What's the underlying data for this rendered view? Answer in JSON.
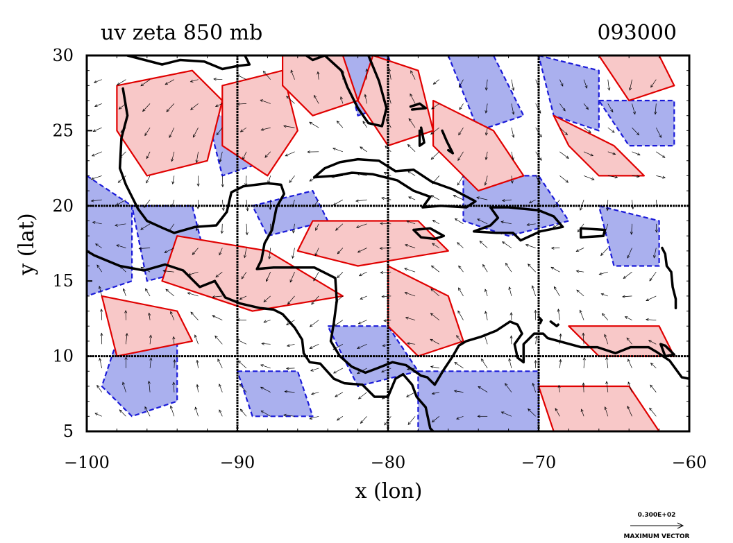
{
  "chart_data": {
    "type": "vector-contour",
    "title": "uv zeta 850 mb",
    "time_label": "093000",
    "xlabel": "x (lon)",
    "ylabel": "y (lat)",
    "xlim": [
      -100,
      -60
    ],
    "ylim": [
      5,
      30
    ],
    "xticks": [
      -100,
      -90,
      -80,
      -70,
      -60
    ],
    "xtick_labels": [
      "−100",
      "−90",
      "−80",
      "−70",
      "−60"
    ],
    "yticks": [
      5,
      10,
      15,
      20,
      25,
      30
    ],
    "ytick_labels": [
      "5",
      "10",
      "15",
      "20",
      "25",
      "30"
    ],
    "grid_lon": [
      -90,
      -80,
      -70
    ],
    "grid_lat": [
      10,
      20
    ],
    "vector_key_value": "0.300E+02",
    "vector_key_label": "MAXIMUM VECTOR",
    "colors": {
      "positive_contour": "#e00000",
      "positive_fill": "#f8c8c8",
      "negative_contour": "#1a1ad8",
      "negative_fill": "#aab0ee",
      "coastline": "#000000"
    },
    "positive_regions": [
      [
        [
          -98,
          28
        ],
        [
          -93,
          29
        ],
        [
          -91,
          27
        ],
        [
          -92,
          23
        ],
        [
          -96,
          22
        ],
        [
          -98,
          25
        ]
      ],
      [
        [
          -91,
          28
        ],
        [
          -87,
          29
        ],
        [
          -86,
          25
        ],
        [
          -88,
          22
        ],
        [
          -91,
          24
        ]
      ],
      [
        [
          -87,
          30
        ],
        [
          -83,
          30
        ],
        [
          -82,
          27
        ],
        [
          -85,
          26
        ],
        [
          -87,
          28
        ]
      ],
      [
        [
          -81,
          30
        ],
        [
          -78,
          29
        ],
        [
          -77,
          25
        ],
        [
          -80,
          24
        ],
        [
          -82,
          27
        ]
      ],
      [
        [
          -77,
          27
        ],
        [
          -73,
          25
        ],
        [
          -71,
          22
        ],
        [
          -74,
          21
        ],
        [
          -77,
          24
        ]
      ],
      [
        [
          -85,
          19
        ],
        [
          -78,
          19
        ],
        [
          -76,
          17
        ],
        [
          -82,
          16
        ],
        [
          -86,
          17
        ]
      ],
      [
        [
          -94,
          18
        ],
        [
          -88,
          17
        ],
        [
          -83,
          14
        ],
        [
          -89,
          13
        ],
        [
          -95,
          15
        ]
      ],
      [
        [
          -99,
          14
        ],
        [
          -94,
          13
        ],
        [
          -93,
          11
        ],
        [
          -98,
          10
        ]
      ],
      [
        [
          -80,
          16
        ],
        [
          -76,
          14
        ],
        [
          -75,
          11
        ],
        [
          -78,
          10
        ],
        [
          -80,
          12
        ]
      ],
      [
        [
          -68,
          12
        ],
        [
          -62,
          12
        ],
        [
          -61,
          10
        ],
        [
          -66,
          10
        ]
      ],
      [
        [
          -70,
          8
        ],
        [
          -64,
          8
        ],
        [
          -62,
          5
        ],
        [
          -69,
          5
        ]
      ],
      [
        [
          -66,
          30
        ],
        [
          -62,
          30
        ],
        [
          -61,
          28
        ],
        [
          -64,
          27
        ]
      ],
      [
        [
          -69,
          26
        ],
        [
          -65,
          24
        ],
        [
          -63,
          22
        ],
        [
          -66,
          22
        ],
        [
          -68,
          24
        ]
      ]
    ],
    "negative_regions": [
      [
        [
          -100,
          22
        ],
        [
          -97,
          20
        ],
        [
          -97,
          15
        ],
        [
          -100,
          14
        ]
      ],
      [
        [
          -97,
          20
        ],
        [
          -93,
          20
        ],
        [
          -92,
          16
        ],
        [
          -96,
          15
        ]
      ],
      [
        [
          -92,
          26
        ],
        [
          -89,
          26
        ],
        [
          -88,
          23
        ],
        [
          -91,
          22
        ]
      ],
      [
        [
          -89,
          20
        ],
        [
          -85,
          21
        ],
        [
          -84,
          19
        ],
        [
          -88,
          18
        ]
      ],
      [
        [
          -83,
          30
        ],
        [
          -80,
          30
        ],
        [
          -79,
          27
        ],
        [
          -82,
          26
        ]
      ],
      [
        [
          -76,
          30
        ],
        [
          -73,
          30
        ],
        [
          -71,
          26
        ],
        [
          -74,
          25
        ]
      ],
      [
        [
          -70,
          30
        ],
        [
          -66,
          29
        ],
        [
          -66,
          25
        ],
        [
          -69,
          26
        ]
      ],
      [
        [
          -66,
          27
        ],
        [
          -61,
          27
        ],
        [
          -61,
          24
        ],
        [
          -64,
          24
        ]
      ],
      [
        [
          -75,
          22
        ],
        [
          -70,
          22
        ],
        [
          -68,
          19
        ],
        [
          -72,
          18
        ],
        [
          -75,
          19
        ]
      ],
      [
        [
          -66,
          20
        ],
        [
          -62,
          19
        ],
        [
          -62,
          16
        ],
        [
          -65,
          16
        ]
      ],
      [
        [
          -84,
          12
        ],
        [
          -80,
          12
        ],
        [
          -78,
          9
        ],
        [
          -82,
          8
        ]
      ],
      [
        [
          -90,
          9
        ],
        [
          -86,
          9
        ],
        [
          -85,
          6
        ],
        [
          -89,
          6
        ]
      ],
      [
        [
          -78,
          9
        ],
        [
          -70,
          9
        ],
        [
          -70,
          5
        ],
        [
          -78,
          5
        ]
      ],
      [
        [
          -98,
          11
        ],
        [
          -94,
          11
        ],
        [
          -94,
          7
        ],
        [
          -97,
          6
        ],
        [
          -99,
          8
        ]
      ]
    ],
    "coastlines": [
      [
        [
          -97.6,
          27.8
        ],
        [
          -97.3,
          26.0
        ],
        [
          -97.7,
          24.5
        ],
        [
          -97.8,
          22.5
        ],
        [
          -97.4,
          21.4
        ],
        [
          -96.6,
          19.8
        ],
        [
          -96.0,
          19.0
        ],
        [
          -94.9,
          18.5
        ],
        [
          -94.2,
          18.2
        ],
        [
          -92.8,
          18.6
        ],
        [
          -91.4,
          18.7
        ],
        [
          -90.7,
          19.6
        ],
        [
          -90.4,
          20.9
        ],
        [
          -89.6,
          21.3
        ],
        [
          -88.0,
          21.5
        ],
        [
          -87.1,
          21.4
        ],
        [
          -86.9,
          20.8
        ],
        [
          -87.4,
          19.9
        ],
        [
          -87.7,
          18.4
        ],
        [
          -88.2,
          17.5
        ],
        [
          -88.4,
          16.4
        ],
        [
          -88.7,
          15.8
        ],
        [
          -87.6,
          15.9
        ],
        [
          -86.4,
          15.9
        ],
        [
          -84.9,
          15.9
        ],
        [
          -83.5,
          15.2
        ],
        [
          -83.4,
          13.7
        ],
        [
          -83.6,
          12.2
        ],
        [
          -83.8,
          11.0
        ],
        [
          -83.2,
          10.0
        ],
        [
          -82.4,
          9.3
        ],
        [
          -81.5,
          8.9
        ],
        [
          -80.7,
          9.2
        ],
        [
          -79.7,
          9.6
        ],
        [
          -78.8,
          9.4
        ],
        [
          -77.8,
          8.7
        ],
        [
          -77.4,
          8.6
        ],
        [
          -76.9,
          8.1
        ],
        [
          -76.3,
          9.1
        ],
        [
          -75.7,
          10.0
        ],
        [
          -75.3,
          10.7
        ],
        [
          -74.8,
          11.0
        ],
        [
          -73.8,
          11.3
        ],
        [
          -72.8,
          11.7
        ],
        [
          -71.9,
          12.3
        ],
        [
          -71.4,
          12.1
        ],
        [
          -71.1,
          11.5
        ],
        [
          -71.6,
          10.8
        ],
        [
          -71.4,
          9.9
        ],
        [
          -71.0,
          9.6
        ],
        [
          -71.0,
          10.8
        ],
        [
          -70.3,
          11.5
        ],
        [
          -69.7,
          11.5
        ],
        [
          -69.4,
          11.2
        ],
        [
          -68.3,
          10.9
        ],
        [
          -67.2,
          10.6
        ],
        [
          -66.1,
          10.6
        ],
        [
          -64.9,
          10.2
        ],
        [
          -63.9,
          10.6
        ],
        [
          -62.7,
          10.6
        ],
        [
          -62.2,
          10.3
        ],
        [
          -61.3,
          9.7
        ],
        [
          -60.5,
          8.6
        ],
        [
          -60.0,
          8.5
        ]
      ],
      [
        [
          -91.5,
          15.0
        ],
        [
          -92.5,
          14.6
        ],
        [
          -93.6,
          15.7
        ],
        [
          -94.8,
          16.1
        ],
        [
          -96.2,
          15.7
        ],
        [
          -97.8,
          16.0
        ],
        [
          -99.5,
          16.7
        ],
        [
          -100.0,
          17.0
        ]
      ],
      [
        [
          -91.5,
          15.0
        ],
        [
          -90.8,
          13.9
        ],
        [
          -89.8,
          13.5
        ],
        [
          -88.5,
          13.2
        ],
        [
          -87.6,
          13.1
        ],
        [
          -87.0,
          12.8
        ],
        [
          -86.2,
          11.9
        ],
        [
          -85.7,
          11.1
        ],
        [
          -85.6,
          10.2
        ],
        [
          -85.2,
          9.6
        ],
        [
          -84.5,
          9.5
        ],
        [
          -83.6,
          8.5
        ],
        [
          -82.9,
          8.2
        ],
        [
          -81.7,
          8.1
        ],
        [
          -80.9,
          7.3
        ],
        [
          -80.0,
          7.3
        ],
        [
          -79.5,
          8.5
        ],
        [
          -79.0,
          8.8
        ],
        [
          -78.4,
          8.1
        ],
        [
          -78.1,
          7.3
        ],
        [
          -77.5,
          6.6
        ],
        [
          -77.2,
          5.2
        ],
        [
          -77.0,
          5.0
        ]
      ],
      [
        [
          -97.3,
          30.0
        ],
        [
          -95.0,
          29.4
        ],
        [
          -93.8,
          29.7
        ],
        [
          -92.2,
          29.6
        ],
        [
          -91.0,
          29.1
        ],
        [
          -90.0,
          29.3
        ],
        [
          -89.2,
          29.4
        ],
        [
          -89.6,
          30.2
        ]
      ],
      [
        [
          -87.5,
          30.4
        ],
        [
          -86.0,
          30.4
        ],
        [
          -85.0,
          29.7
        ],
        [
          -84.2,
          30.0
        ],
        [
          -83.1,
          29.0
        ],
        [
          -82.7,
          27.9
        ],
        [
          -82.0,
          26.5
        ],
        [
          -81.3,
          25.5
        ],
        [
          -80.4,
          25.3
        ],
        [
          -80.1,
          26.5
        ],
        [
          -80.6,
          28.3
        ],
        [
          -81.3,
          30.0
        ]
      ],
      [
        [
          -84.9,
          21.9
        ],
        [
          -84.2,
          22.5
        ],
        [
          -83.2,
          22.9
        ],
        [
          -82.0,
          23.1
        ],
        [
          -80.6,
          23.0
        ],
        [
          -79.5,
          22.3
        ],
        [
          -78.3,
          22.4
        ],
        [
          -77.1,
          21.6
        ],
        [
          -75.7,
          21.1
        ],
        [
          -74.2,
          20.3
        ],
        [
          -74.8,
          19.9
        ],
        [
          -76.5,
          20.0
        ],
        [
          -77.7,
          19.9
        ],
        [
          -77.2,
          20.6
        ],
        [
          -78.3,
          21.0
        ],
        [
          -79.4,
          21.7
        ],
        [
          -81.0,
          22.1
        ],
        [
          -82.4,
          22.2
        ],
        [
          -83.5,
          22.0
        ],
        [
          -84.9,
          21.9
        ]
      ],
      [
        [
          -73.2,
          19.9
        ],
        [
          -72.0,
          19.9
        ],
        [
          -70.0,
          19.7
        ],
        [
          -69.0,
          19.3
        ],
        [
          -68.4,
          18.6
        ],
        [
          -69.9,
          18.3
        ],
        [
          -71.2,
          17.7
        ],
        [
          -71.7,
          18.2
        ],
        [
          -72.8,
          18.2
        ],
        [
          -74.3,
          18.3
        ],
        [
          -73.2,
          18.7
        ],
        [
          -72.7,
          19.2
        ],
        [
          -73.2,
          19.9
        ]
      ],
      [
        [
          -78.3,
          18.4
        ],
        [
          -77.2,
          18.5
        ],
        [
          -76.3,
          18.0
        ],
        [
          -76.9,
          17.8
        ],
        [
          -77.8,
          17.9
        ],
        [
          -78.3,
          18.4
        ]
      ],
      [
        [
          -67.2,
          18.5
        ],
        [
          -65.6,
          18.4
        ],
        [
          -65.7,
          18.0
        ],
        [
          -67.2,
          17.9
        ],
        [
          -67.2,
          18.5
        ]
      ],
      [
        [
          -78.5,
          26.6
        ],
        [
          -77.9,
          26.8
        ],
        [
          -77.5,
          26.5
        ],
        [
          -78.4,
          26.4
        ]
      ],
      [
        [
          -77.8,
          25.2
        ],
        [
          -77.6,
          24.2
        ],
        [
          -77.9,
          24.0
        ],
        [
          -77.9,
          25.0
        ]
      ],
      [
        [
          -76.4,
          25.0
        ],
        [
          -76.1,
          24.3
        ],
        [
          -75.7,
          23.5
        ],
        [
          -76.0,
          23.7
        ]
      ],
      [
        [
          -70.0,
          12.6
        ],
        [
          -69.8,
          12.4
        ],
        [
          -69.9,
          12.2
        ]
      ],
      [
        [
          -69.2,
          12.3
        ],
        [
          -68.8,
          12.0
        ],
        [
          -68.7,
          12.1
        ]
      ],
      [
        [
          -61.8,
          17.2
        ],
        [
          -61.6,
          16.8
        ],
        [
          -61.5,
          16.0
        ],
        [
          -61.2,
          15.6
        ],
        [
          -61.1,
          14.6
        ],
        [
          -60.9,
          13.8
        ],
        [
          -60.9,
          13.2
        ]
      ],
      [
        [
          -61.9,
          10.8
        ],
        [
          -61.6,
          10.7
        ],
        [
          -61.0,
          10.1
        ],
        [
          -61.6,
          10.0
        ],
        [
          -61.9,
          10.8
        ]
      ]
    ]
  }
}
